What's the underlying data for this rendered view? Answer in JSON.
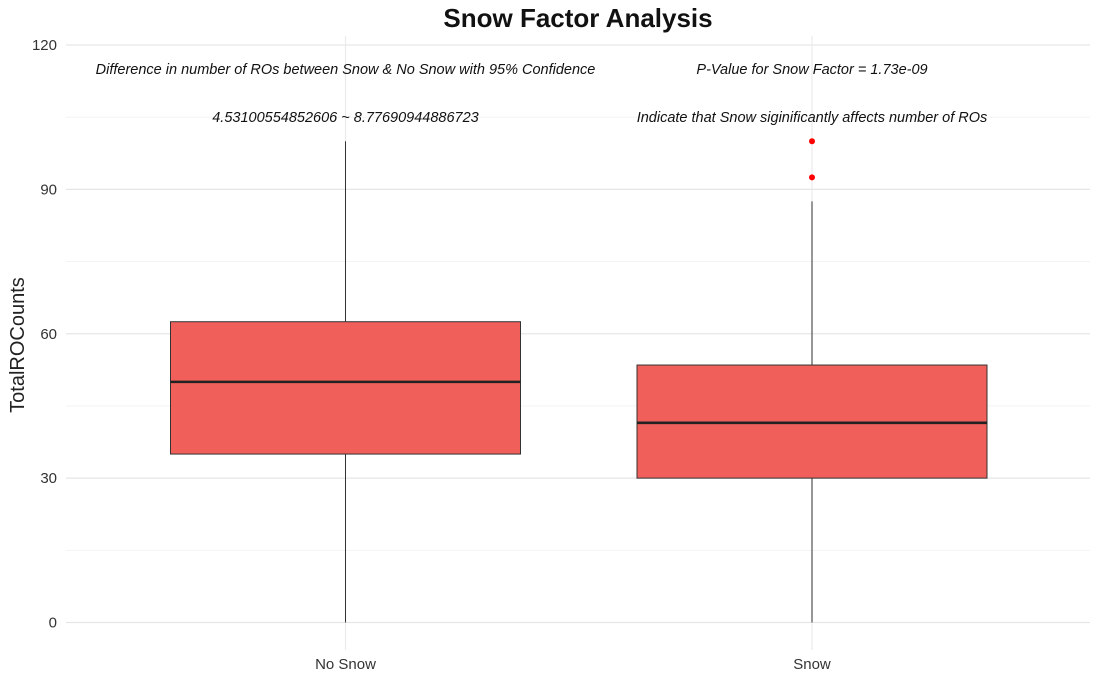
{
  "chart_data": {
    "type": "boxplot",
    "title": "Snow Factor Analysis",
    "xlabel": "",
    "ylabel": "TotalROCounts",
    "ylim": [
      0,
      120
    ],
    "yticks": [
      0,
      30,
      60,
      90,
      120
    ],
    "grid": true,
    "box_color": "#F15F5A",
    "outlier_color": "#FF0000",
    "categories": [
      "No Snow",
      "Snow"
    ],
    "boxes": [
      {
        "category": "No Snow",
        "min": 0,
        "q1": 35,
        "median": 50,
        "q3": 62.5,
        "max": 100,
        "outliers": []
      },
      {
        "category": "Snow",
        "min": 0,
        "q1": 30,
        "median": 41.5,
        "q3": 53.5,
        "max": 87.5,
        "outliers": [
          92.5,
          100
        ]
      }
    ],
    "annotations": [
      {
        "text": "Difference in number of ROs between Snow & No Snow with 95% Confidence",
        "x": "No Snow",
        "y": 115
      },
      {
        "text": "4.53100554852606  ~  8.77690944886723",
        "x": "No Snow",
        "y": 105
      },
      {
        "text": "P-Value for Snow Factor =  1.73e-09",
        "x": "Snow",
        "y": 115
      },
      {
        "text": "Indicate that Snow siginificantly affects number of ROs",
        "x": "Snow",
        "y": 105
      }
    ]
  }
}
